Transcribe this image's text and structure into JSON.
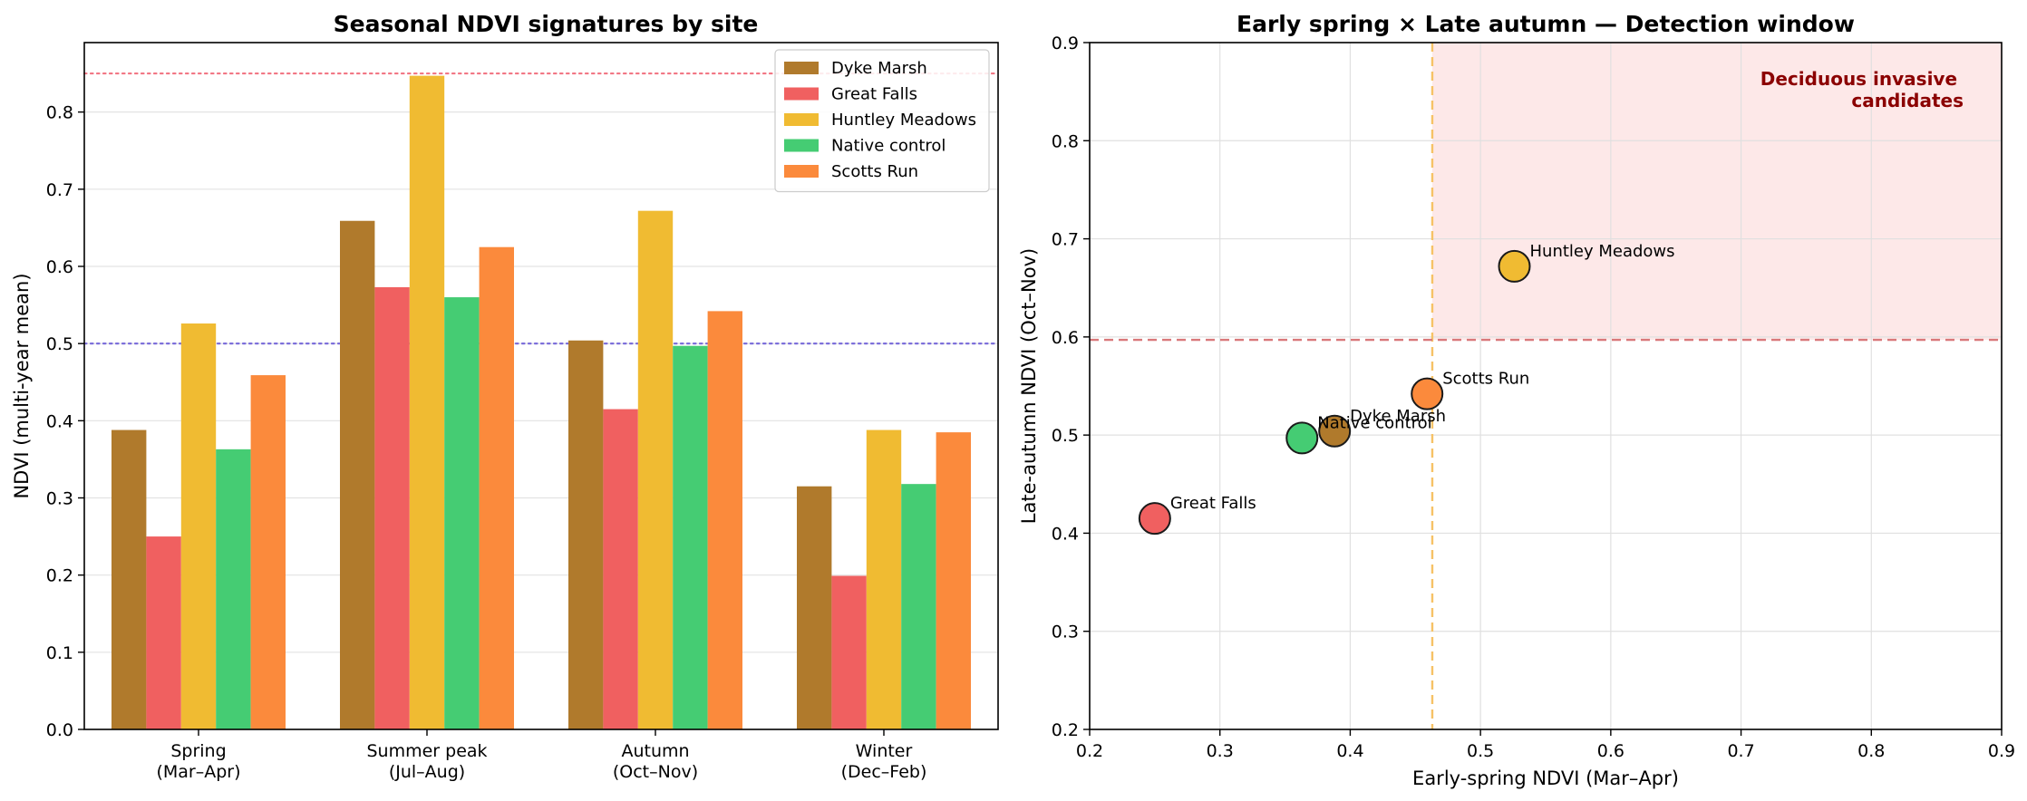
{
  "chart_data": [
    {
      "type": "bar",
      "title": "Seasonal NDVI signatures by site",
      "xlabel": "",
      "ylabel": "NDVI (multi-year mean)",
      "ylim": [
        0,
        0.89
      ],
      "yticks": [
        "0.0",
        "0.1",
        "0.2",
        "0.3",
        "0.4",
        "0.5",
        "0.6",
        "0.7",
        "0.8"
      ],
      "categories": [
        [
          "Spring",
          "(Mar–Apr)"
        ],
        [
          "Summer peak",
          "(Jul–Aug)"
        ],
        [
          "Autumn",
          "(Oct–Nov)"
        ],
        [
          "Winter",
          "(Dec–Feb)"
        ]
      ],
      "series": [
        {
          "name": "Dyke Marsh",
          "color": "#b07a2c",
          "values": [
            0.388,
            0.659,
            0.504,
            0.315
          ]
        },
        {
          "name": "Great Falls",
          "color": "#f06060",
          "values": [
            0.25,
            0.573,
            0.415,
            0.199
          ]
        },
        {
          "name": "Huntley Meadows",
          "color": "#f0bb32",
          "values": [
            0.526,
            0.847,
            0.672,
            0.388
          ]
        },
        {
          "name": "Native control",
          "color": "#45cc73",
          "values": [
            0.363,
            0.56,
            0.497,
            0.318
          ]
        },
        {
          "name": "Scotts Run",
          "color": "#fb8a3c",
          "values": [
            0.459,
            0.625,
            0.542,
            0.385
          ]
        }
      ],
      "reference_lines": [
        {
          "y": 0.85,
          "color": "#f06070",
          "style": "dotted"
        },
        {
          "y": 0.5,
          "color": "#6a5ad8",
          "style": "dotted"
        }
      ],
      "grid": "horizontal",
      "legend": "top-right"
    },
    {
      "type": "scatter",
      "title": "Early spring × Late autumn — Detection window",
      "xlabel": "Early-spring NDVI (Mar–Apr)",
      "ylabel": "Late-autumn NDVI (Oct–Nov)",
      "xlim": [
        0.2,
        0.9
      ],
      "ylim": [
        0.2,
        0.9
      ],
      "xticks": [
        "0.2",
        "0.3",
        "0.4",
        "0.5",
        "0.6",
        "0.7",
        "0.8",
        "0.9"
      ],
      "yticks": [
        "0.2",
        "0.3",
        "0.4",
        "0.5",
        "0.6",
        "0.7",
        "0.8",
        "0.9"
      ],
      "points": [
        {
          "name": "Dyke Marsh",
          "x": 0.388,
          "y": 0.504,
          "color": "#b07a2c"
        },
        {
          "name": "Great Falls",
          "x": 0.25,
          "y": 0.415,
          "color": "#f06060"
        },
        {
          "name": "Huntley Meadows",
          "x": 0.526,
          "y": 0.672,
          "color": "#f0bb32"
        },
        {
          "name": "Native control",
          "x": 0.363,
          "y": 0.497,
          "color": "#45cc73"
        },
        {
          "name": "Scotts Run",
          "x": 0.459,
          "y": 0.542,
          "color": "#fb8a3c"
        }
      ],
      "threshold_x": {
        "value": 0.463,
        "color": "#f6c266"
      },
      "threshold_y": {
        "value": 0.597,
        "color": "#d9787a"
      },
      "region": {
        "label_line1": "Deciduous invasive",
        "label_line2": "candidates",
        "fill": "#fde8e8",
        "label_color": "#8b0000"
      },
      "grid": "both"
    }
  ]
}
